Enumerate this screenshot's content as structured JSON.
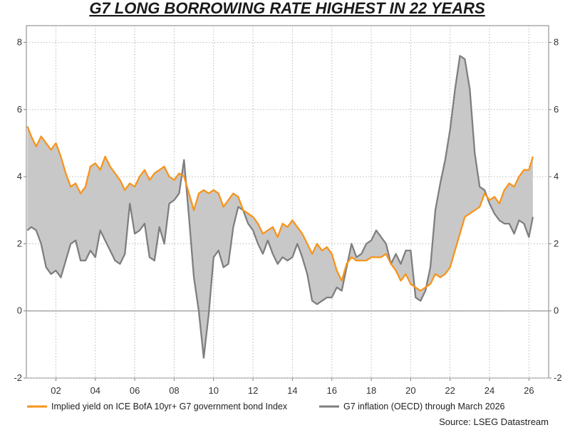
{
  "chart_data": {
    "type": "line",
    "title": "G7 LONG BORROWING RATE HIGHEST IN 22 YEARS",
    "source": "Source: LSEG Datastream",
    "ylim": [
      -2,
      8.5
    ],
    "xlim": [
      2000.5,
      2027.0
    ],
    "y_ticks": [
      -2,
      0,
      2,
      4,
      6,
      8
    ],
    "y_tick_labels": [
      "-2",
      "0",
      "2",
      "4",
      "6",
      "8"
    ],
    "x_ticks": [
      2002,
      2004,
      2006,
      2008,
      2010,
      2012,
      2014,
      2016,
      2018,
      2020,
      2022,
      2024,
      2026
    ],
    "x_tick_labels": [
      "02",
      "04",
      "06",
      "08",
      "10",
      "12",
      "14",
      "16",
      "18",
      "20",
      "22",
      "24",
      "26"
    ],
    "grid": true,
    "zero_line": true,
    "legend_position": "bottom",
    "shaded_area_between_series": true,
    "colors": {
      "yield": "#f7941d",
      "inflation": "#7f7f7f",
      "fill": "#c8c8c8",
      "zero_line": "#999999",
      "grid": "#b8b8b8"
    },
    "series": [
      {
        "name": "Implied yield on ICE BofA 10yr+ G7 government bond Index",
        "x": [
          2000.55,
          2000.75,
          2001.0,
          2001.25,
          2001.5,
          2001.75,
          2002.0,
          2002.25,
          2002.5,
          2002.75,
          2003.0,
          2003.25,
          2003.5,
          2003.75,
          2004.0,
          2004.25,
          2004.5,
          2004.75,
          2005.0,
          2005.25,
          2005.5,
          2005.75,
          2006.0,
          2006.25,
          2006.5,
          2006.75,
          2007.0,
          2007.25,
          2007.5,
          2007.75,
          2008.0,
          2008.25,
          2008.5,
          2008.75,
          2009.0,
          2009.25,
          2009.5,
          2009.75,
          2010.0,
          2010.25,
          2010.5,
          2010.75,
          2011.0,
          2011.25,
          2011.5,
          2011.75,
          2012.0,
          2012.25,
          2012.5,
          2012.75,
          2013.0,
          2013.25,
          2013.5,
          2013.75,
          2014.0,
          2014.25,
          2014.5,
          2014.75,
          2015.0,
          2015.25,
          2015.5,
          2015.75,
          2016.0,
          2016.25,
          2016.5,
          2016.75,
          2017.0,
          2017.25,
          2017.5,
          2017.75,
          2018.0,
          2018.25,
          2018.5,
          2018.75,
          2019.0,
          2019.25,
          2019.5,
          2019.75,
          2020.0,
          2020.25,
          2020.5,
          2020.75,
          2021.0,
          2021.25,
          2021.5,
          2021.75,
          2022.0,
          2022.25,
          2022.5,
          2022.75,
          2023.0,
          2023.25,
          2023.5,
          2023.75,
          2024.0,
          2024.25,
          2024.5,
          2024.75,
          2025.0,
          2025.25,
          2025.5,
          2025.75,
          2026.0,
          2026.2
        ],
        "values": [
          5.5,
          5.2,
          4.9,
          5.2,
          5.0,
          4.8,
          5.0,
          4.6,
          4.1,
          3.7,
          3.8,
          3.5,
          3.7,
          4.3,
          4.4,
          4.2,
          4.6,
          4.3,
          4.1,
          3.9,
          3.6,
          3.8,
          3.7,
          4.0,
          4.2,
          3.9,
          4.1,
          4.2,
          4.3,
          4.0,
          3.9,
          4.1,
          4.0,
          3.5,
          3.0,
          3.5,
          3.6,
          3.5,
          3.6,
          3.5,
          3.1,
          3.3,
          3.5,
          3.4,
          3.0,
          2.9,
          2.8,
          2.6,
          2.3,
          2.4,
          2.5,
          2.2,
          2.6,
          2.5,
          2.7,
          2.5,
          2.3,
          2.0,
          1.7,
          2.0,
          1.8,
          1.9,
          1.7,
          1.2,
          0.9,
          1.4,
          1.6,
          1.5,
          1.5,
          1.5,
          1.6,
          1.6,
          1.6,
          1.7,
          1.4,
          1.2,
          0.9,
          1.1,
          0.8,
          0.7,
          0.6,
          0.7,
          0.8,
          1.1,
          1.0,
          1.1,
          1.3,
          1.8,
          2.3,
          2.8,
          2.9,
          3.0,
          3.1,
          3.5,
          3.3,
          3.4,
          3.2,
          3.6,
          3.8,
          3.7,
          4.0,
          4.2,
          4.2,
          4.6
        ]
      },
      {
        "name": "G7 inflation (OECD) through March 2026",
        "x": [
          2000.55,
          2000.75,
          2001.0,
          2001.25,
          2001.5,
          2001.75,
          2002.0,
          2002.25,
          2002.5,
          2002.75,
          2003.0,
          2003.25,
          2003.5,
          2003.75,
          2004.0,
          2004.25,
          2004.5,
          2004.75,
          2005.0,
          2005.25,
          2005.5,
          2005.75,
          2006.0,
          2006.25,
          2006.5,
          2006.75,
          2007.0,
          2007.25,
          2007.5,
          2007.75,
          2008.0,
          2008.25,
          2008.5,
          2008.75,
          2009.0,
          2009.25,
          2009.5,
          2009.75,
          2010.0,
          2010.25,
          2010.5,
          2010.75,
          2011.0,
          2011.25,
          2011.5,
          2011.75,
          2012.0,
          2012.25,
          2012.5,
          2012.75,
          2013.0,
          2013.25,
          2013.5,
          2013.75,
          2014.0,
          2014.25,
          2014.5,
          2014.75,
          2015.0,
          2015.25,
          2015.5,
          2015.75,
          2016.0,
          2016.25,
          2016.5,
          2016.75,
          2017.0,
          2017.25,
          2017.5,
          2017.75,
          2018.0,
          2018.25,
          2018.5,
          2018.75,
          2019.0,
          2019.25,
          2019.5,
          2019.75,
          2020.0,
          2020.25,
          2020.5,
          2020.75,
          2021.0,
          2021.25,
          2021.5,
          2021.75,
          2022.0,
          2022.25,
          2022.5,
          2022.75,
          2023.0,
          2023.25,
          2023.5,
          2023.75,
          2024.0,
          2024.25,
          2024.5,
          2024.75,
          2025.0,
          2025.25,
          2025.5,
          2025.75,
          2026.0,
          2026.2
        ],
        "values": [
          2.4,
          2.5,
          2.4,
          2.0,
          1.3,
          1.1,
          1.2,
          1.0,
          1.5,
          2.0,
          2.1,
          1.5,
          1.5,
          1.8,
          1.6,
          2.4,
          2.1,
          1.8,
          1.5,
          1.4,
          1.7,
          3.2,
          2.3,
          2.4,
          2.6,
          1.6,
          1.5,
          2.5,
          2.0,
          3.2,
          3.3,
          3.5,
          4.5,
          2.8,
          1.0,
          0.0,
          -1.4,
          -0.1,
          1.6,
          1.8,
          1.3,
          1.4,
          2.5,
          3.1,
          3.0,
          2.6,
          2.4,
          2.0,
          1.7,
          2.1,
          1.7,
          1.4,
          1.6,
          1.5,
          1.6,
          2.0,
          1.6,
          1.1,
          0.3,
          0.2,
          0.3,
          0.4,
          0.4,
          0.7,
          0.6,
          1.3,
          2.0,
          1.6,
          1.7,
          2.0,
          2.1,
          2.4,
          2.2,
          2.0,
          1.4,
          1.7,
          1.4,
          1.8,
          1.8,
          0.4,
          0.3,
          0.6,
          1.3,
          3.0,
          3.8,
          4.5,
          5.4,
          6.6,
          7.6,
          7.5,
          6.6,
          4.7,
          3.7,
          3.6,
          3.2,
          2.9,
          2.7,
          2.6,
          2.6,
          2.3,
          2.7,
          2.6,
          2.2,
          2.8
        ]
      }
    ]
  }
}
